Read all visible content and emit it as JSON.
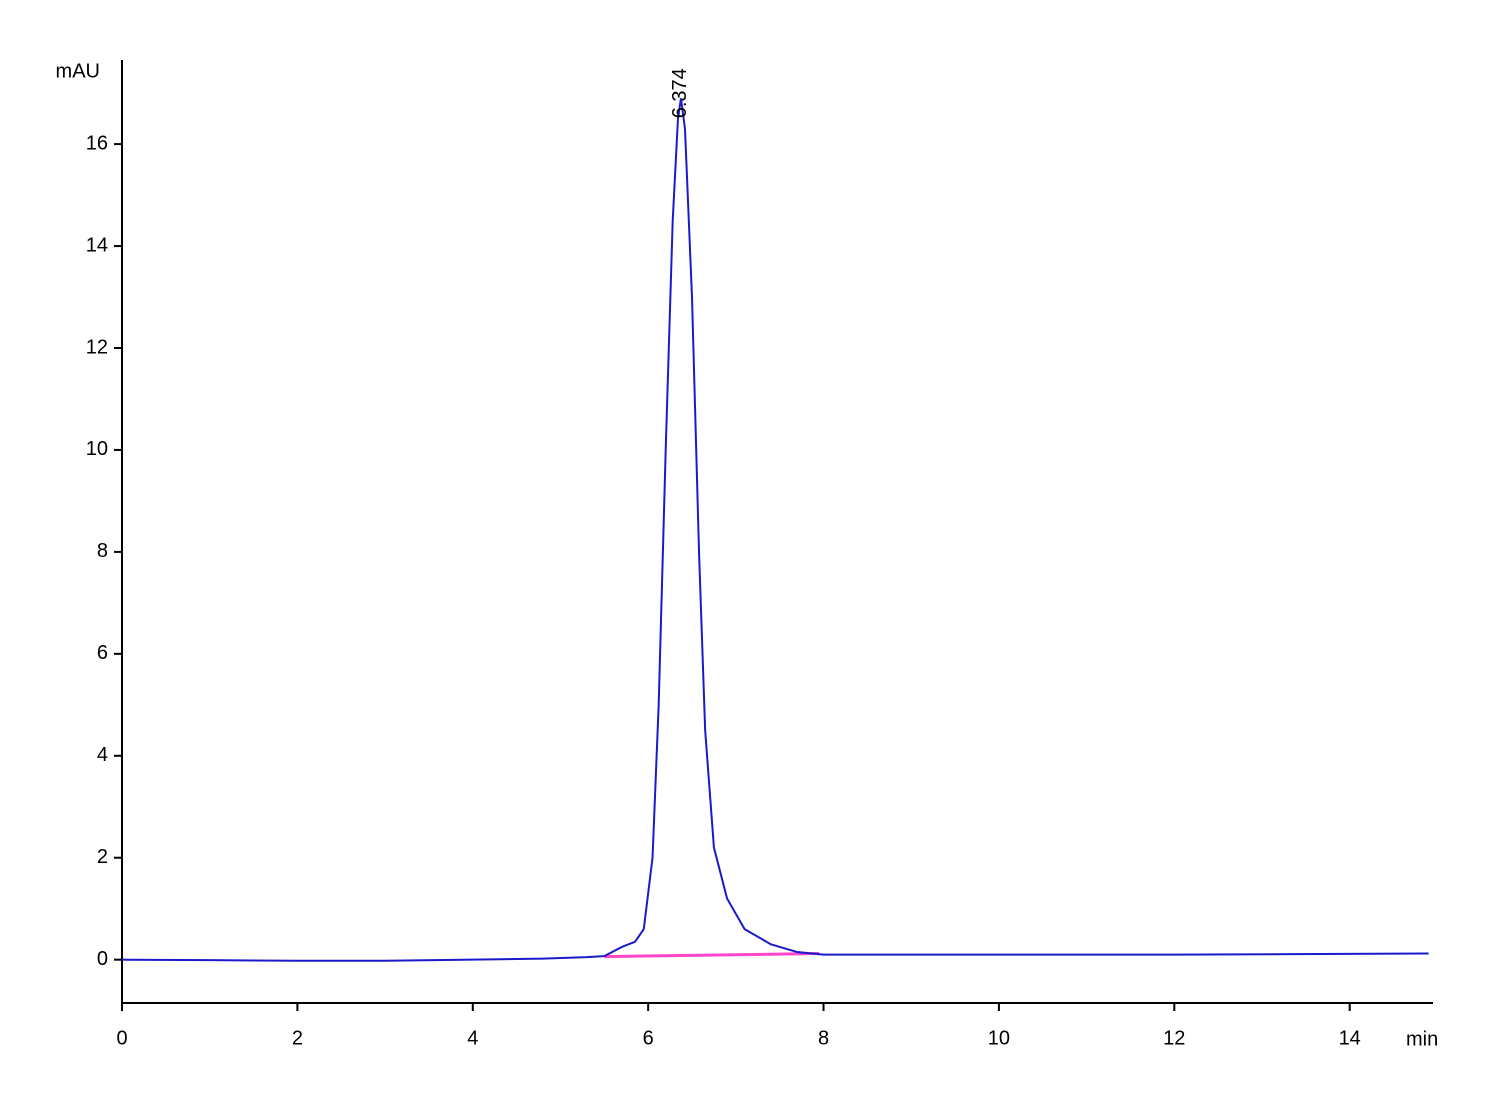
{
  "chart_data": {
    "type": "line",
    "x_label": "min",
    "y_label": "mAU",
    "x": [
      0,
      1,
      2,
      3,
      4,
      4.8,
      5.3,
      5.5,
      5.7,
      5.85,
      5.95,
      6.05,
      6.12,
      6.2,
      6.28,
      6.34,
      6.374,
      6.42,
      6.5,
      6.58,
      6.65,
      6.75,
      6.9,
      7.1,
      7.4,
      7.7,
      8,
      10,
      12,
      14.9
    ],
    "values": [
      0,
      -0.01,
      -0.02,
      -0.02,
      0,
      0.02,
      0.05,
      0.07,
      0.25,
      0.35,
      0.6,
      2,
      5,
      10,
      14.5,
      16.5,
      16.9,
      16.3,
      13,
      8,
      4.5,
      2.2,
      1.2,
      0.6,
      0.3,
      0.15,
      0.1,
      0.1,
      0.1,
      0.12
    ],
    "color": "#1a1acc",
    "baseline": {
      "x": [
        5.5,
        7.95
      ],
      "values": [
        0.06,
        0.12
      ],
      "color": "#ff44cc"
    },
    "annotation": {
      "text": "6.374",
      "x": 6.374,
      "y": 16.9
    },
    "xlim": [
      0,
      14.95
    ],
    "ylim": [
      -0.85,
      17.65
    ],
    "xticks": [
      0,
      2,
      4,
      6,
      8,
      10,
      12,
      14
    ],
    "yticks": [
      0,
      2,
      4,
      6,
      8,
      10,
      12,
      14,
      16
    ],
    "grid": false
  }
}
